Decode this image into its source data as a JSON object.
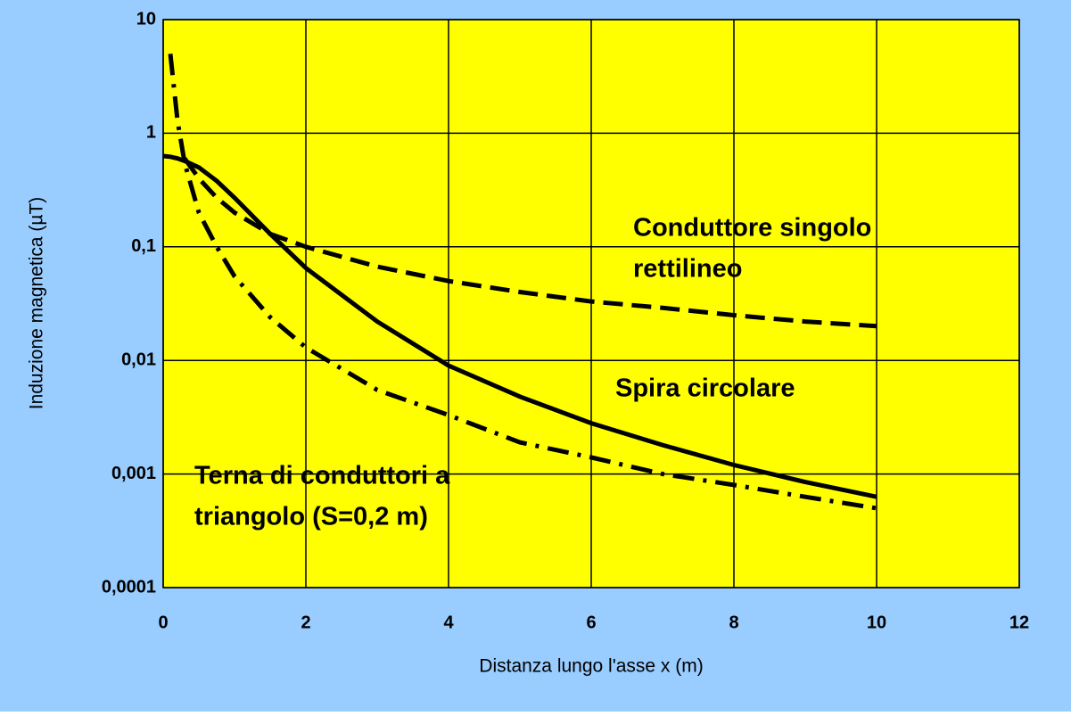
{
  "chart_data": {
    "type": "line",
    "xlabel": "Distanza lungo l'asse x (m)",
    "ylabel": "Induzione magnetica (µT)",
    "x": [
      0,
      0.1,
      0.2,
      0.3,
      0.5,
      0.75,
      1,
      1.5,
      2,
      3,
      4,
      5,
      6,
      7,
      8,
      9,
      10
    ],
    "series": [
      {
        "name": "Conduttore singolo rettilineo",
        "color": "#000000",
        "dash": "dashed",
        "values": [
          null,
          null,
          null,
          0.6,
          0.4,
          0.27,
          0.2,
          0.13,
          0.1,
          0.067,
          0.05,
          0.04,
          0.033,
          0.029,
          0.025,
          0.022,
          0.02
        ]
      },
      {
        "name": "Spira circolare",
        "color": "#000000",
        "dash": "solid",
        "values": [
          0.63,
          0.62,
          0.6,
          0.57,
          0.5,
          0.38,
          0.27,
          0.13,
          0.065,
          0.022,
          0.009,
          0.0048,
          0.0028,
          0.0018,
          0.0012,
          0.00085,
          0.00063
        ]
      },
      {
        "name": "Terna di conduttori a triangolo (S=0,2 m)",
        "color": "#000000",
        "dash": "dashdot",
        "values": [
          null,
          5,
          1.3,
          0.55,
          0.2,
          0.1,
          0.055,
          0.024,
          0.013,
          0.0055,
          0.0033,
          0.0019,
          0.0014,
          0.001,
          0.0008,
          0.00063,
          0.0005
        ]
      }
    ],
    "annotations": [
      [
        "Conduttore singolo",
        "rettilineo"
      ],
      [
        "Spira circolare"
      ],
      [
        "Terna di conduttori a",
        "triangolo (S=0,2 m)"
      ]
    ],
    "xlim": [
      0,
      12
    ],
    "xticks": [
      0,
      2,
      4,
      6,
      8,
      10,
      12
    ],
    "ylim": [
      0.0001,
      10
    ],
    "log_y": true,
    "yticks": [
      {
        "value": 0.0001,
        "label": "0,0001"
      },
      {
        "value": 0.001,
        "label": "0,001"
      },
      {
        "value": 0.01,
        "label": "0,01"
      },
      {
        "value": 0.1,
        "label": "0,1"
      },
      1,
      10
    ],
    "grid": true,
    "plot_background": "#ffff00",
    "background": "#99ccff"
  }
}
